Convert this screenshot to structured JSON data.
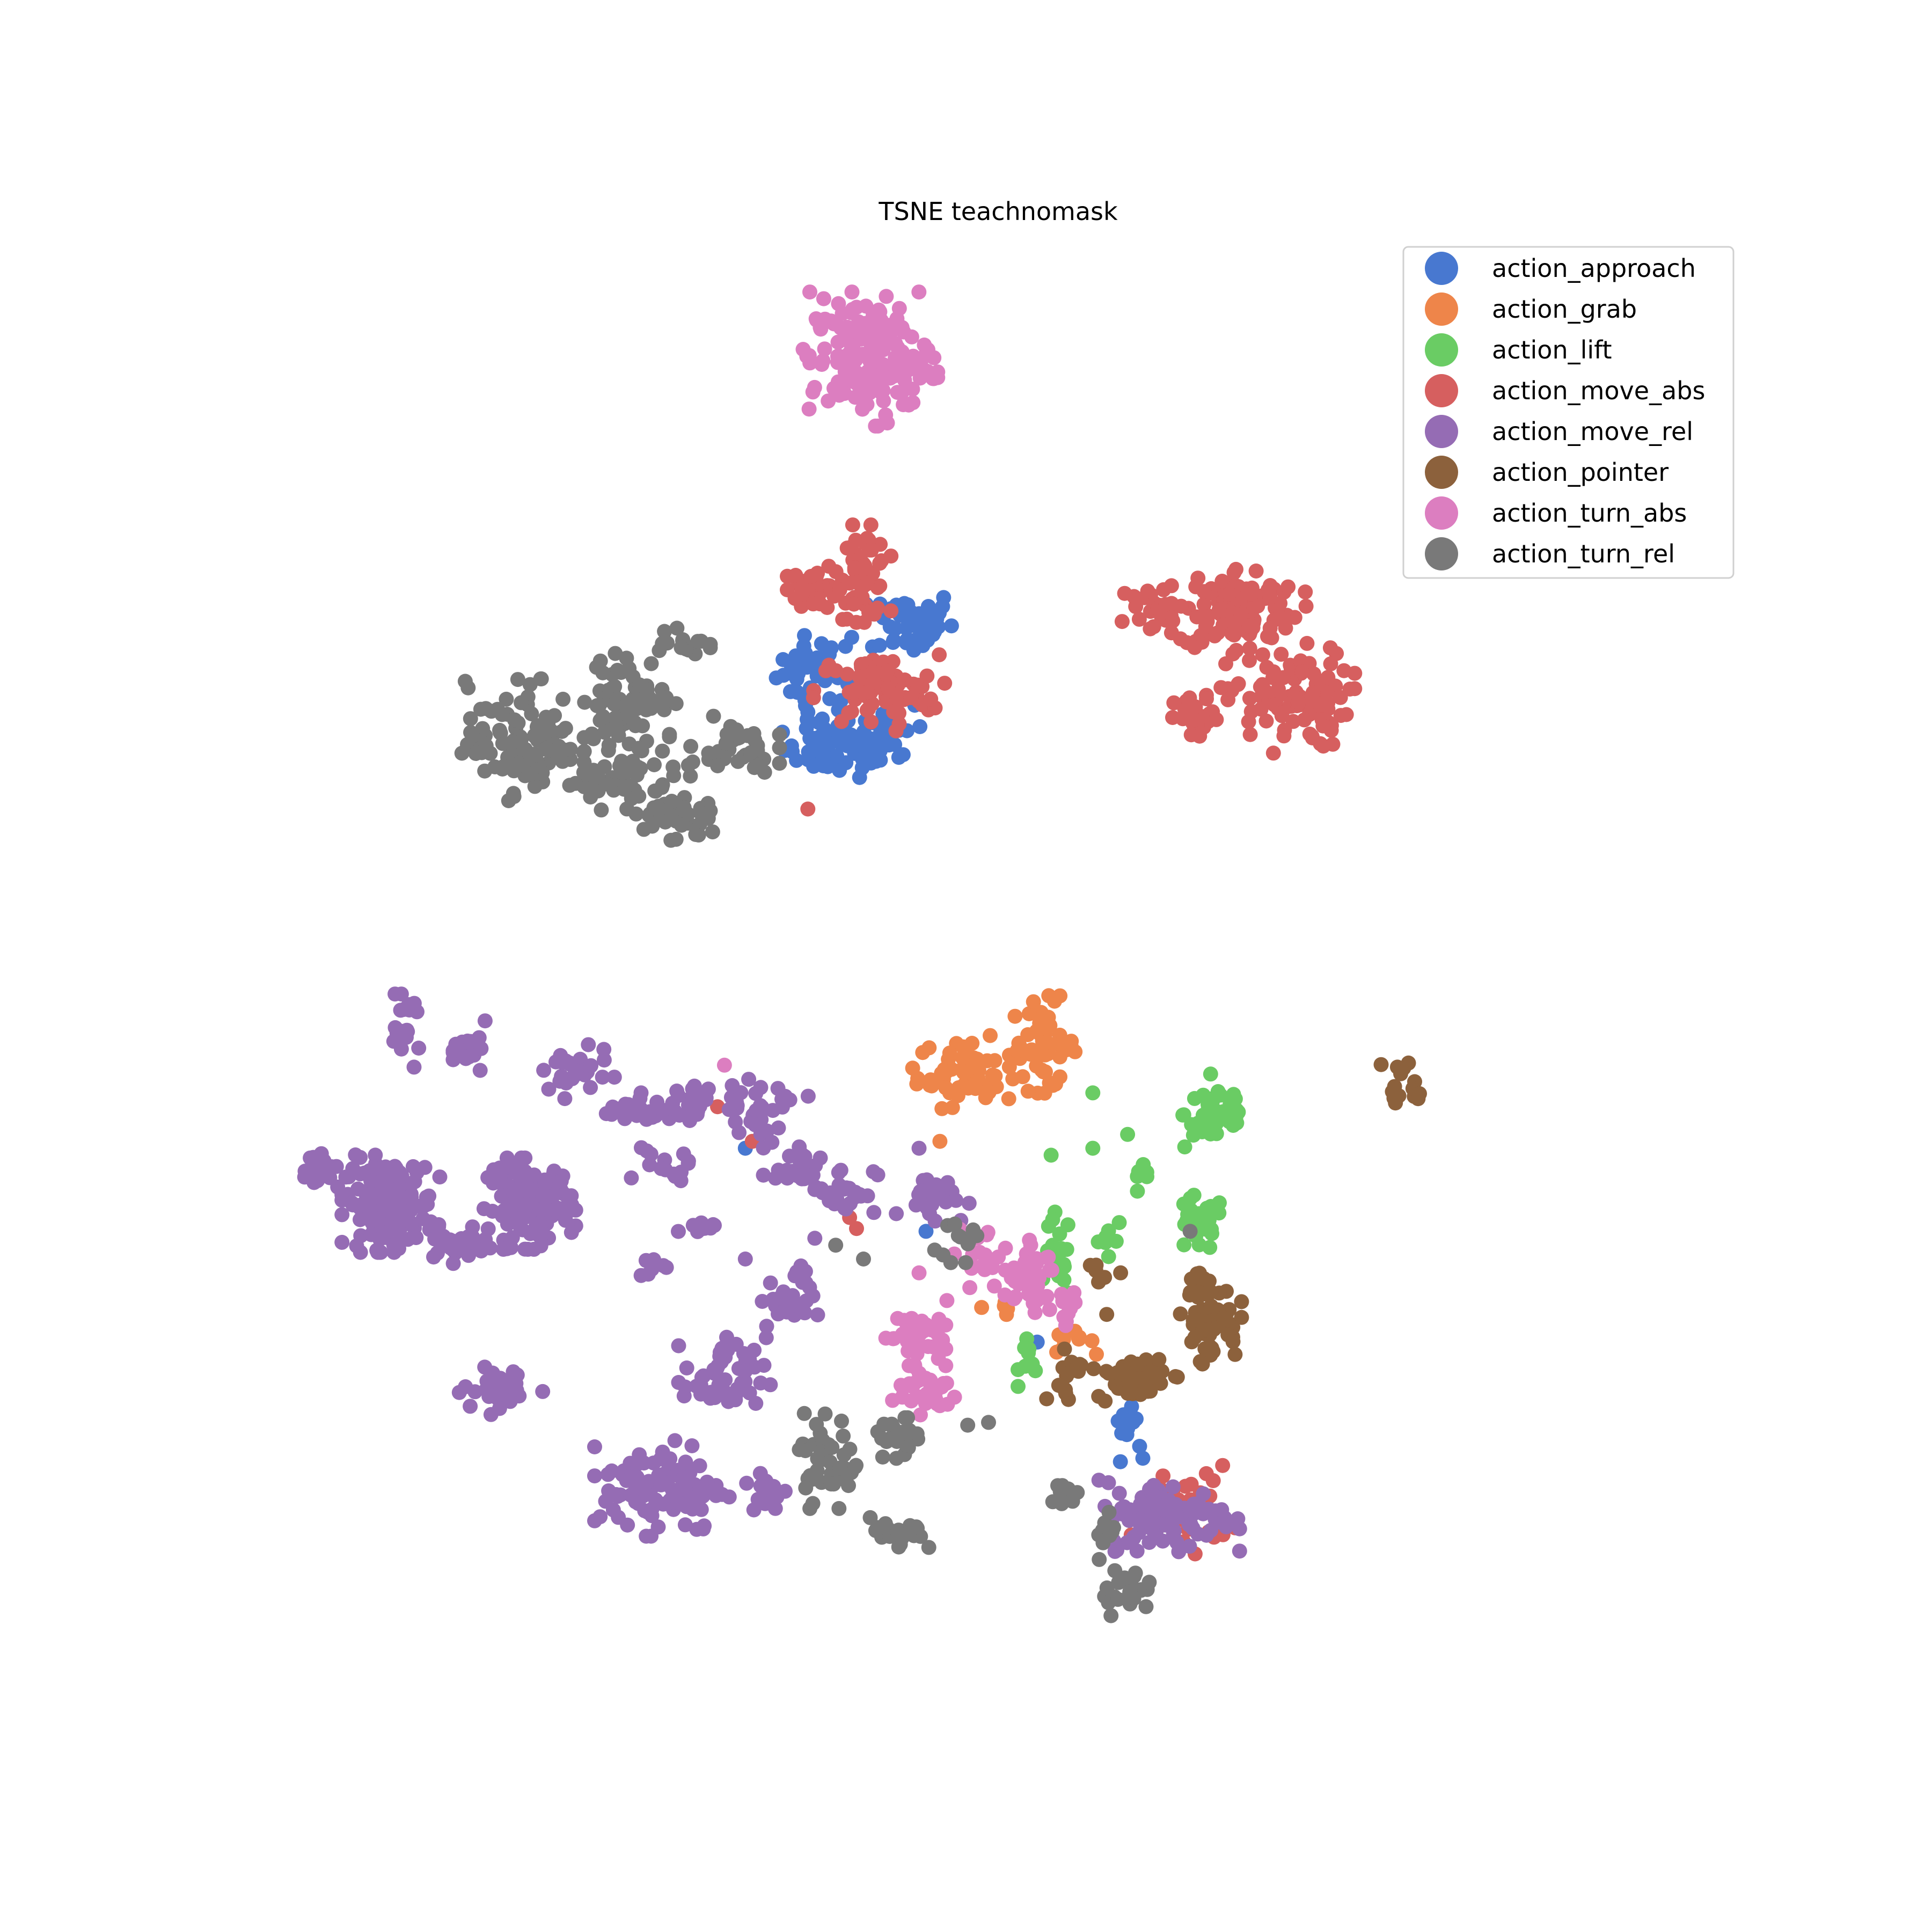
{
  "chart_data": {
    "type": "scatter",
    "title": "TSNE teachnomask",
    "xlabel": "",
    "ylabel": "",
    "axes_visible": false,
    "grid": false,
    "xlim": [
      0,
      100
    ],
    "ylim": [
      0,
      100
    ],
    "legend_position": "top-right",
    "series": [
      {
        "name": "action_approach",
        "color": "#4878d0",
        "clusters": [
          {
            "cx": 36.7,
            "cy": 72.6,
            "sx": 1.2,
            "sy": 1.2,
            "n": 35
          },
          {
            "cx": 38.8,
            "cy": 66.8,
            "sx": 2.0,
            "sy": 1.0,
            "n": 70
          },
          {
            "cx": 44.0,
            "cy": 76.0,
            "sx": 1.5,
            "sy": 1.2,
            "n": 50
          },
          {
            "cx": 42.0,
            "cy": 68.5,
            "sx": 1.5,
            "sy": 1.0,
            "n": 25
          },
          {
            "cx": 39.5,
            "cy": 73.5,
            "sx": 0.6,
            "sy": 1.5,
            "n": 6
          },
          {
            "cx": 59.5,
            "cy": 18.0,
            "sx": 0.5,
            "sy": 1.2,
            "n": 18
          }
        ],
        "points": [
          [
            32.0,
            38.0
          ],
          [
            45.0,
            32.0
          ],
          [
            53.0,
            24.0
          ],
          [
            36.5,
            69.5
          ],
          [
            42.8,
            71.0
          ]
        ]
      },
      {
        "name": "action_grab",
        "color": "#ee854a",
        "clusters": [
          {
            "cx": 48.0,
            "cy": 43.5,
            "sx": 1.8,
            "sy": 1.2,
            "n": 65
          },
          {
            "cx": 53.5,
            "cy": 45.5,
            "sx": 1.2,
            "sy": 1.6,
            "n": 45
          },
          {
            "cx": 55.5,
            "cy": 24.0,
            "sx": 0.8,
            "sy": 0.4,
            "n": 10
          },
          {
            "cx": 50.8,
            "cy": 26.0,
            "sx": 0.3,
            "sy": 0.6,
            "n": 5
          }
        ],
        "points": [
          [
            46.0,
            38.5
          ],
          [
            49.0,
            26.5
          ]
        ]
      },
      {
        "name": "action_lift",
        "color": "#6acc64",
        "clusters": [
          {
            "cx": 66.0,
            "cy": 40.5,
            "sx": 1.2,
            "sy": 1.3,
            "n": 45
          },
          {
            "cx": 64.5,
            "cy": 32.5,
            "sx": 1.0,
            "sy": 1.0,
            "n": 30
          },
          {
            "cx": 54.5,
            "cy": 30.0,
            "sx": 0.5,
            "sy": 1.6,
            "n": 18
          },
          {
            "cx": 58.0,
            "cy": 31.5,
            "sx": 0.6,
            "sy": 0.8,
            "n": 8
          },
          {
            "cx": 60.5,
            "cy": 35.5,
            "sx": 0.4,
            "sy": 0.6,
            "n": 8
          },
          {
            "cx": 52.5,
            "cy": 23.0,
            "sx": 0.4,
            "sy": 1.0,
            "n": 10
          }
        ],
        "points": [
          [
            59.5,
            39.0
          ],
          [
            57.0,
            38.0
          ],
          [
            54.0,
            37.5
          ],
          [
            57.0,
            42.0
          ]
        ]
      },
      {
        "name": "action_move_abs",
        "color": "#d65f5f",
        "clusters": [
          {
            "cx": 37.0,
            "cy": 78.5,
            "sx": 0.9,
            "sy": 0.8,
            "n": 35
          },
          {
            "cx": 40.5,
            "cy": 79.5,
            "sx": 0.9,
            "sy": 1.6,
            "n": 60
          },
          {
            "cx": 41.5,
            "cy": 71.0,
            "sx": 2.2,
            "sy": 1.3,
            "n": 75
          },
          {
            "cx": 61.5,
            "cy": 77.0,
            "sx": 1.4,
            "sy": 1.0,
            "n": 25
          },
          {
            "cx": 67.5,
            "cy": 77.0,
            "sx": 2.2,
            "sy": 1.5,
            "n": 110
          },
          {
            "cx": 71.0,
            "cy": 70.5,
            "sx": 2.2,
            "sy": 1.8,
            "n": 100
          },
          {
            "cx": 64.5,
            "cy": 69.0,
            "sx": 0.8,
            "sy": 0.8,
            "n": 30
          },
          {
            "cx": 63.5,
            "cy": 12.0,
            "sx": 1.7,
            "sy": 1.5,
            "n": 45
          }
        ],
        "points": [
          [
            30.0,
            41.0
          ],
          [
            32.5,
            38.5
          ],
          [
            38.5,
            34.5
          ],
          [
            39.5,
            33.0
          ],
          [
            40.0,
            32.2
          ],
          [
            36.5,
            62.5
          ]
        ]
      },
      {
        "name": "action_move_rel",
        "color": "#956cb4",
        "clusters": [
          {
            "cx": 6.5,
            "cy": 34.0,
            "sx": 1.6,
            "sy": 1.6,
            "n": 150
          },
          {
            "cx": 16.5,
            "cy": 34.0,
            "sx": 1.5,
            "sy": 1.5,
            "n": 120
          },
          {
            "cx": 1.5,
            "cy": 36.5,
            "sx": 0.8,
            "sy": 0.8,
            "n": 20
          },
          {
            "cx": 11.0,
            "cy": 31.0,
            "sx": 1.2,
            "sy": 0.6,
            "n": 25
          },
          {
            "cx": 14.5,
            "cy": 36.5,
            "sx": 0.6,
            "sy": 0.4,
            "n": 10
          },
          {
            "cx": 7.5,
            "cy": 46.5,
            "sx": 0.6,
            "sy": 1.2,
            "n": 20
          },
          {
            "cx": 12.3,
            "cy": 45.0,
            "sx": 0.6,
            "sy": 1.0,
            "n": 20
          },
          {
            "cx": 19.5,
            "cy": 43.5,
            "sx": 1.4,
            "sy": 0.9,
            "n": 30
          },
          {
            "cx": 24.0,
            "cy": 40.5,
            "sx": 1.4,
            "sy": 0.5,
            "n": 18
          },
          {
            "cx": 28.5,
            "cy": 41.5,
            "sx": 1.3,
            "sy": 0.9,
            "n": 25
          },
          {
            "cx": 26.0,
            "cy": 36.5,
            "sx": 1.0,
            "sy": 0.7,
            "n": 15
          },
          {
            "cx": 33.0,
            "cy": 41.0,
            "sx": 1.6,
            "sy": 0.9,
            "n": 30
          },
          {
            "cx": 35.5,
            "cy": 37.0,
            "sx": 1.0,
            "sy": 0.8,
            "n": 20
          },
          {
            "cx": 39.0,
            "cy": 35.0,
            "sx": 1.2,
            "sy": 0.9,
            "n": 30
          },
          {
            "cx": 45.5,
            "cy": 34.5,
            "sx": 1.2,
            "sy": 0.8,
            "n": 25
          },
          {
            "cx": 28.5,
            "cy": 32.0,
            "sx": 0.6,
            "sy": 0.4,
            "n": 12
          },
          {
            "cx": 25.0,
            "cy": 29.5,
            "sx": 0.6,
            "sy": 0.4,
            "n": 8
          },
          {
            "cx": 35.0,
            "cy": 27.0,
            "sx": 1.0,
            "sy": 1.0,
            "n": 30
          },
          {
            "cx": 30.5,
            "cy": 21.5,
            "sx": 1.5,
            "sy": 1.4,
            "n": 50
          },
          {
            "cx": 14.5,
            "cy": 20.5,
            "sx": 1.4,
            "sy": 0.8,
            "n": 35
          },
          {
            "cx": 26.0,
            "cy": 13.5,
            "sx": 2.2,
            "sy": 1.6,
            "n": 110
          },
          {
            "cx": 33.5,
            "cy": 13.0,
            "sx": 0.8,
            "sy": 0.9,
            "n": 15
          },
          {
            "cx": 62.5,
            "cy": 11.5,
            "sx": 2.3,
            "sy": 1.2,
            "n": 110
          }
        ],
        "points": [
          [
            36.0,
            29.5
          ],
          [
            37.0,
            31.5
          ],
          [
            32.0,
            30.0
          ],
          [
            28.0,
            40.0
          ],
          [
            22.0,
            40.5
          ],
          [
            24.5,
            42.0
          ],
          [
            44.5,
            38.0
          ]
        ]
      },
      {
        "name": "action_pointer",
        "color": "#8c613c",
        "clusters": [
          {
            "cx": 65.5,
            "cy": 25.5,
            "sx": 1.0,
            "sy": 1.4,
            "n": 55
          },
          {
            "cx": 60.0,
            "cy": 21.5,
            "sx": 1.4,
            "sy": 0.8,
            "n": 50
          },
          {
            "cx": 55.0,
            "cy": 21.5,
            "sx": 0.6,
            "sy": 1.2,
            "n": 15
          },
          {
            "cx": 64.5,
            "cy": 28.5,
            "sx": 0.5,
            "sy": 0.5,
            "n": 8
          },
          {
            "cx": 57.0,
            "cy": 29.0,
            "sx": 0.4,
            "sy": 0.3,
            "n": 5
          },
          {
            "cx": 79.5,
            "cy": 42.5,
            "sx": 0.8,
            "sy": 1.0,
            "n": 15
          }
        ],
        "points": [
          [
            59.0,
            29.0
          ],
          [
            58.0,
            26.0
          ]
        ]
      },
      {
        "name": "action_turn_abs",
        "color": "#dc7ec0",
        "clusters": [
          {
            "cx": 41.0,
            "cy": 95.0,
            "sx": 2.2,
            "sy": 2.2,
            "n": 170
          },
          {
            "cx": 44.0,
            "cy": 24.5,
            "sx": 1.1,
            "sy": 1.0,
            "n": 40
          },
          {
            "cx": 45.0,
            "cy": 20.5,
            "sx": 1.2,
            "sy": 0.8,
            "n": 35
          },
          {
            "cx": 48.8,
            "cy": 30.5,
            "sx": 0.8,
            "sy": 1.2,
            "n": 18
          },
          {
            "cx": 52.0,
            "cy": 28.5,
            "sx": 1.2,
            "sy": 1.3,
            "n": 40
          },
          {
            "cx": 55.0,
            "cy": 26.0,
            "sx": 0.6,
            "sy": 0.8,
            "n": 10
          }
        ],
        "points": [
          [
            30.5,
            44.0
          ],
          [
            44.5,
            29.0
          ],
          [
            46.5,
            27.0
          ]
        ]
      },
      {
        "name": "action_turn_rel",
        "color": "#797979",
        "clusters": [
          {
            "cx": 16.0,
            "cy": 67.5,
            "sx": 2.0,
            "sy": 2.0,
            "n": 110
          },
          {
            "cx": 23.5,
            "cy": 70.5,
            "sx": 1.6,
            "sy": 1.5,
            "n": 70
          },
          {
            "cx": 23.0,
            "cy": 65.0,
            "sx": 1.8,
            "sy": 1.3,
            "n": 50
          },
          {
            "cx": 30.5,
            "cy": 67.0,
            "sx": 1.8,
            "sy": 1.0,
            "n": 40
          },
          {
            "cx": 27.0,
            "cy": 62.0,
            "sx": 1.6,
            "sy": 0.9,
            "n": 40
          },
          {
            "cx": 27.5,
            "cy": 74.5,
            "sx": 0.9,
            "sy": 0.6,
            "n": 18
          },
          {
            "cx": 38.0,
            "cy": 15.5,
            "sx": 1.2,
            "sy": 1.6,
            "n": 40
          },
          {
            "cx": 43.0,
            "cy": 17.0,
            "sx": 0.8,
            "sy": 0.8,
            "n": 25
          },
          {
            "cx": 43.0,
            "cy": 10.0,
            "sx": 1.0,
            "sy": 0.6,
            "n": 25
          },
          {
            "cx": 55.0,
            "cy": 13.0,
            "sx": 0.4,
            "sy": 0.6,
            "n": 12
          },
          {
            "cx": 59.5,
            "cy": 6.0,
            "sx": 0.9,
            "sy": 0.8,
            "n": 25
          },
          {
            "cx": 58.0,
            "cy": 10.5,
            "sx": 0.4,
            "sy": 1.0,
            "n": 10
          },
          {
            "cx": 47.5,
            "cy": 31.5,
            "sx": 1.0,
            "sy": 0.8,
            "n": 12
          }
        ],
        "points": [
          [
            48.0,
            18.0
          ],
          [
            49.5,
            18.2
          ],
          [
            40.5,
            30.0
          ],
          [
            64.0,
            32.0
          ],
          [
            38.5,
            31.0
          ]
        ]
      }
    ]
  }
}
